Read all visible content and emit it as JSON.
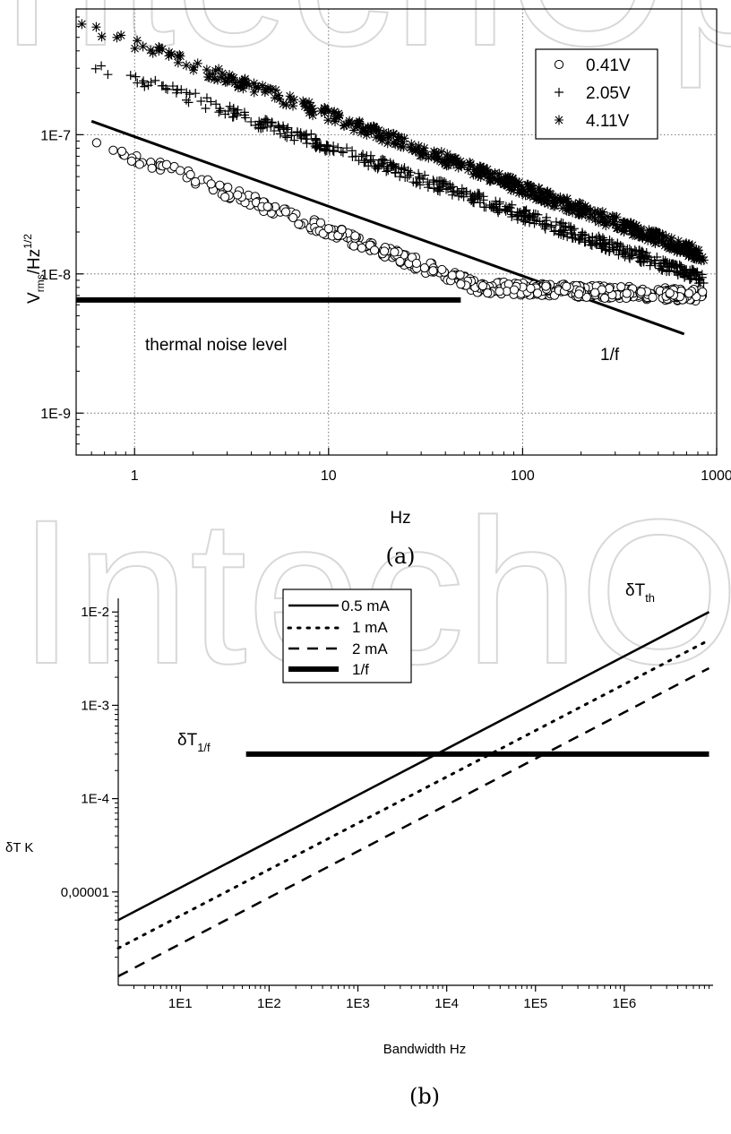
{
  "figure": {
    "watermark": "IntechOpen",
    "caption_a": "(a)",
    "caption_b": "(b)"
  },
  "chart_data": [
    {
      "id": "a",
      "type": "scatter",
      "x_scale": "log",
      "y_scale": "log",
      "xlim": [
        0.5,
        1000
      ],
      "ylim": [
        5e-10,
        8e-07
      ],
      "xlabel": "Hz",
      "ylabel_main": "V",
      "ylabel_sub": "rms",
      "ylabel_mid": "/Hz",
      "ylabel_sup": "1/2",
      "x_ticks": [
        {
          "value": 1,
          "label": "1"
        },
        {
          "value": 10,
          "label": "10"
        },
        {
          "value": 100,
          "label": "100"
        },
        {
          "value": 1000,
          "label": "1000"
        }
      ],
      "y_ticks": [
        {
          "value": 1e-09,
          "label": "1E-9"
        },
        {
          "value": 1e-08,
          "label": "1E-8"
        },
        {
          "value": 1e-07,
          "label": "1E-7"
        }
      ],
      "grid": "dotted",
      "legend_position": "top-right",
      "series": [
        {
          "name": "0.41V",
          "marker": "circle",
          "start": [
            0.5,
            1e-07
          ],
          "end": [
            860,
            7e-09
          ],
          "floor": 8e-09,
          "knee": 60
        },
        {
          "name": "2.05V",
          "marker": "plus",
          "start": [
            0.5,
            3.6e-07
          ],
          "end": [
            860,
            9.2e-09
          ]
        },
        {
          "name": "4.11V",
          "marker": "asterisk",
          "start": [
            0.5,
            6.5e-07
          ],
          "end": [
            860,
            1.35e-08
          ]
        }
      ],
      "lines": [
        {
          "label": "1/f",
          "points": [
            [
              0.6,
              1.25e-07
            ],
            [
              680,
              3.7e-09
            ]
          ],
          "width": 3
        },
        {
          "label": "thermal noise level",
          "points": [
            [
              0.5,
              6.5e-09
            ],
            [
              48,
              6.5e-09
            ]
          ],
          "width": 6
        }
      ]
    },
    {
      "id": "b",
      "type": "line",
      "x_scale": "log",
      "y_scale": "log",
      "xlim": [
        2,
        10000000
      ],
      "ylim": [
        1e-06,
        0.014
      ],
      "xlabel": "Bandwidth  Hz",
      "ylabel": "δT  K",
      "x_ticks": [
        {
          "value": 10,
          "label": "1E1"
        },
        {
          "value": 100,
          "label": "1E2"
        },
        {
          "value": 1000,
          "label": "1E3"
        },
        {
          "value": 10000,
          "label": "1E4"
        },
        {
          "value": 100000,
          "label": "1E5"
        },
        {
          "value": 1000000,
          "label": "1E6"
        }
      ],
      "y_ticks": [
        {
          "value": 1e-05,
          "label": "0,00001"
        },
        {
          "value": 0.0001,
          "label": "1E-4"
        },
        {
          "value": 0.001,
          "label": "1E-3"
        },
        {
          "value": 0.01,
          "label": "1E-2"
        }
      ],
      "legend_position": "top-left",
      "series": [
        {
          "name": "0.5 mA",
          "style": "solid",
          "points": [
            [
              2,
              5e-06
            ],
            [
              9000000,
              0.01
            ]
          ]
        },
        {
          "name": "1 mA",
          "style": "dotted",
          "points": [
            [
              2,
              2.5e-06
            ],
            [
              9000000,
              0.005
            ]
          ]
        },
        {
          "name": "2 mA",
          "style": "dashed",
          "points": [
            [
              2,
              1.25e-06
            ],
            [
              9000000,
              0.0025
            ]
          ]
        },
        {
          "name": "1/f",
          "style": "thick",
          "points": [
            [
              55,
              0.0003
            ],
            [
              9000000,
              0.0003
            ]
          ]
        }
      ],
      "annotations": [
        {
          "base": "δT",
          "sub": "th"
        },
        {
          "base": "δT",
          "sub": "1/f"
        }
      ]
    }
  ]
}
